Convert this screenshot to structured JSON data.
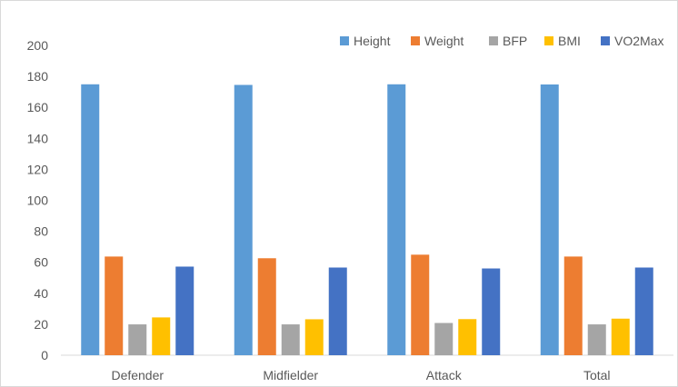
{
  "chart_data": {
    "type": "bar",
    "categories": [
      "Defender",
      "Midfielder",
      "Attack",
      "Total"
    ],
    "series": [
      {
        "name": "Height",
        "color": "#5B9BD5",
        "values": [
          174.9,
          174.5,
          174.9,
          174.8
        ]
      },
      {
        "name": "Weight",
        "color": "#ED7D31",
        "values": [
          63.7,
          62.6,
          64.9,
          63.7
        ]
      },
      {
        "name": "BFP",
        "color": "#A5A5A5",
        "values": [
          19.9,
          19.9,
          20.8,
          19.9
        ]
      },
      {
        "name": "BMI",
        "color": "#FFC000",
        "values": [
          24.4,
          23.2,
          23.3,
          23.6
        ]
      },
      {
        "name": "VO2Max",
        "color": "#4472C4",
        "values": [
          57.2,
          56.6,
          56.0,
          56.6
        ]
      }
    ],
    "ylim": [
      0,
      200
    ],
    "yticks": [
      "0",
      "20",
      "40",
      "60",
      "80",
      "100",
      "120",
      "140",
      "160",
      "180",
      "200"
    ],
    "legend_position": "top-right",
    "grid": false
  }
}
